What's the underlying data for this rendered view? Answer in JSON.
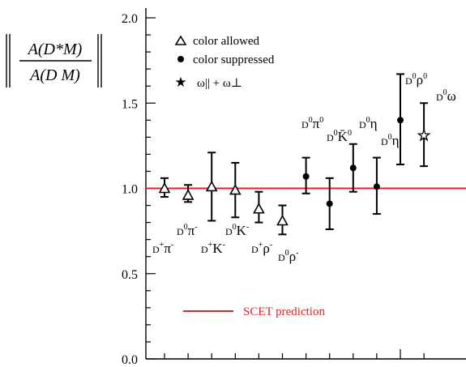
{
  "chart_data": {
    "type": "scatter",
    "ylabel_numerator": "A(D*M)",
    "ylabel_denominator": "A(D M)",
    "ylim": [
      0.0,
      2.0
    ],
    "yticks": [
      {
        "value": 0.0,
        "label": "0.0"
      },
      {
        "value": 0.5,
        "label": "0.5"
      },
      {
        "value": 1.0,
        "label": "1.0"
      },
      {
        "value": 1.5,
        "label": "1.5"
      },
      {
        "value": 2.0,
        "label": "2.0"
      }
    ],
    "grid": false,
    "legend_placement": "top-left",
    "legend": [
      {
        "marker": "triangle",
        "label": "color allowed"
      },
      {
        "marker": "circle",
        "label": "color suppressed"
      },
      {
        "marker": "star",
        "label": "ω|| + ω⊥"
      }
    ],
    "reference_line": {
      "value": 1.0,
      "label": "SCET  prediction",
      "color": "#e8202a"
    },
    "points": [
      {
        "group": "color allowed",
        "marker": "triangle",
        "label": "D+π-",
        "value": 1.0,
        "err_low": 0.95,
        "err_high": 1.06
      },
      {
        "group": "color allowed",
        "marker": "triangle",
        "label": "D0π-",
        "value": 0.96,
        "err_low": 0.92,
        "err_high": 1.02
      },
      {
        "group": "color allowed",
        "marker": "triangle",
        "label": "D+K-",
        "value": 1.01,
        "err_low": 0.81,
        "err_high": 1.21
      },
      {
        "group": "color allowed",
        "marker": "triangle",
        "label": "D0K-",
        "value": 0.99,
        "err_low": 0.83,
        "err_high": 1.15
      },
      {
        "group": "color allowed",
        "marker": "triangle",
        "label": "D+ρ-",
        "value": 0.88,
        "err_low": 0.8,
        "err_high": 0.98
      },
      {
        "group": "color allowed",
        "marker": "triangle",
        "label": "D0ρ-",
        "value": 0.81,
        "err_low": 0.73,
        "err_high": 0.9
      },
      {
        "group": "color suppressed",
        "marker": "circle",
        "label": "D0π0",
        "value": 1.07,
        "err_low": 0.97,
        "err_high": 1.18
      },
      {
        "group": "color suppressed",
        "marker": "circle",
        "label": "D0K̄0",
        "value": 0.91,
        "err_low": 0.76,
        "err_high": 1.06
      },
      {
        "group": "color suppressed",
        "marker": "circle",
        "label": "D0η",
        "value": 1.12,
        "err_low": 0.98,
        "err_high": 1.26
      },
      {
        "group": "color suppressed",
        "marker": "circle",
        "label": "D0η'",
        "value": 1.01,
        "err_low": 0.85,
        "err_high": 1.18
      },
      {
        "group": "color suppressed",
        "marker": "circle",
        "label": "D0ρ0",
        "value": 1.4,
        "err_low": 1.14,
        "err_high": 1.67
      },
      {
        "group": "color suppressed",
        "marker": "star",
        "label": "D0ω",
        "value": 1.31,
        "err_low": 1.13,
        "err_high": 1.5
      }
    ]
  }
}
